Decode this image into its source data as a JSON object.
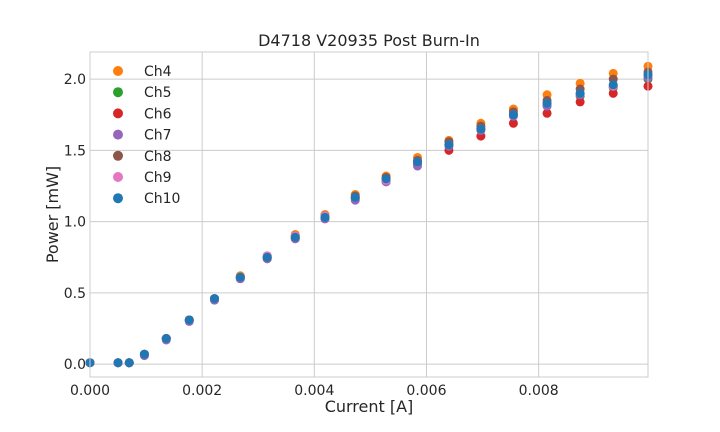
{
  "chart_data": {
    "type": "scatter",
    "title": "D4718 V20935 Post Burn-In",
    "xlabel": "Current [A]",
    "ylabel": "Power [mW]",
    "xlim": [
      0,
      0.00995
    ],
    "ylim": [
      -0.09,
      2.19
    ],
    "x_ticks": [
      0,
      0.002,
      0.004,
      0.006,
      0.008
    ],
    "x_tick_labels": [
      "0.000",
      "0.002",
      "0.004",
      "0.006",
      "0.008"
    ],
    "y_ticks": [
      0,
      0.5,
      1.0,
      1.5,
      2.0
    ],
    "y_tick_labels": [
      "0.0",
      "0.5",
      "1.0",
      "1.5",
      "2.0"
    ],
    "grid": true,
    "legend_position": "top-left",
    "x": [
      0,
      0.0005,
      0.0007,
      0.00097,
      0.00136,
      0.00177,
      0.00222,
      0.00268,
      0.00316,
      0.00366,
      0.00419,
      0.00473,
      0.00528,
      0.00584,
      0.0064,
      0.00697,
      0.00755,
      0.00815,
      0.00874,
      0.00933,
      0.00995
    ],
    "series": [
      {
        "name": "Ch4",
        "color": "#ff7f0e",
        "values": [
          0.01,
          0.01,
          0.01,
          0.07,
          0.18,
          0.31,
          0.46,
          0.62,
          0.76,
          0.91,
          1.05,
          1.19,
          1.32,
          1.45,
          1.57,
          1.69,
          1.79,
          1.89,
          1.97,
          2.04,
          2.09
        ]
      },
      {
        "name": "Ch5",
        "color": "#2ca02c",
        "values": [
          0.01,
          0.01,
          0.01,
          0.07,
          0.18,
          0.31,
          0.46,
          0.61,
          0.75,
          0.89,
          1.03,
          1.17,
          1.3,
          1.42,
          1.54,
          1.65,
          1.75,
          1.82,
          1.88,
          1.94,
          2.0
        ]
      },
      {
        "name": "Ch6",
        "color": "#d62728",
        "values": [
          0.01,
          0.01,
          0.01,
          0.07,
          0.18,
          0.31,
          0.45,
          0.6,
          0.74,
          0.88,
          1.02,
          1.16,
          1.28,
          1.4,
          1.5,
          1.6,
          1.69,
          1.76,
          1.84,
          1.9,
          1.95
        ]
      },
      {
        "name": "Ch7",
        "color": "#9467bd",
        "values": [
          0.01,
          0.01,
          0.01,
          0.06,
          0.17,
          0.3,
          0.45,
          0.6,
          0.74,
          0.88,
          1.02,
          1.15,
          1.28,
          1.39,
          1.53,
          1.64,
          1.74,
          1.81,
          1.89,
          1.95,
          2.01
        ]
      },
      {
        "name": "Ch8",
        "color": "#8c564b",
        "values": [
          0.01,
          0.01,
          0.01,
          0.07,
          0.18,
          0.31,
          0.46,
          0.61,
          0.75,
          0.9,
          1.04,
          1.18,
          1.31,
          1.43,
          1.56,
          1.67,
          1.77,
          1.85,
          1.93,
          2.0,
          2.05
        ]
      },
      {
        "name": "Ch9",
        "color": "#e377c2",
        "values": [
          0.01,
          0.01,
          0.01,
          0.07,
          0.18,
          0.31,
          0.46,
          0.61,
          0.76,
          0.9,
          1.04,
          1.17,
          1.29,
          1.42,
          1.54,
          1.65,
          1.75,
          1.83,
          1.9,
          1.95,
          2.03
        ]
      },
      {
        "name": "Ch10",
        "color": "#1f77b4",
        "values": [
          0.01,
          0.01,
          0.01,
          0.07,
          0.18,
          0.31,
          0.46,
          0.61,
          0.75,
          0.89,
          1.03,
          1.17,
          1.3,
          1.42,
          1.54,
          1.65,
          1.75,
          1.83,
          1.9,
          1.96,
          2.03
        ]
      }
    ]
  }
}
